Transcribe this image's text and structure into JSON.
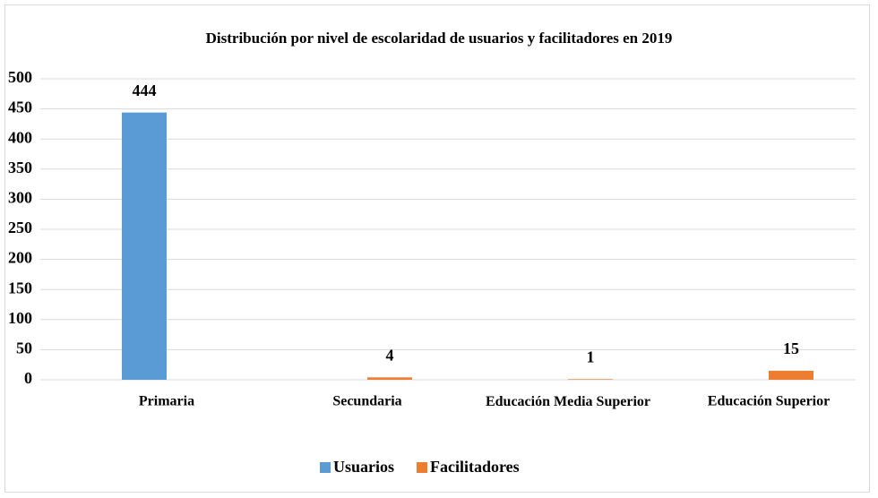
{
  "chart_data": {
    "type": "bar",
    "title": "Distribución por nivel de escolaridad de usuarios y facilitadores en 2019",
    "categories": [
      "Primaria",
      "Secundaria",
      "Educación Media Superior",
      "Educación Superior"
    ],
    "series": [
      {
        "name": "Usuarios",
        "color": "#5b9bd5",
        "values": [
          444,
          null,
          null,
          null
        ]
      },
      {
        "name": "Facilitadores",
        "color": "#ed7d31",
        "values": [
          null,
          4,
          1,
          15
        ]
      }
    ],
    "ylim": [
      0,
      500
    ],
    "yticks": [
      0,
      50,
      100,
      150,
      200,
      250,
      300,
      350,
      400,
      450,
      500
    ],
    "grid": true,
    "legend": "bottom"
  }
}
